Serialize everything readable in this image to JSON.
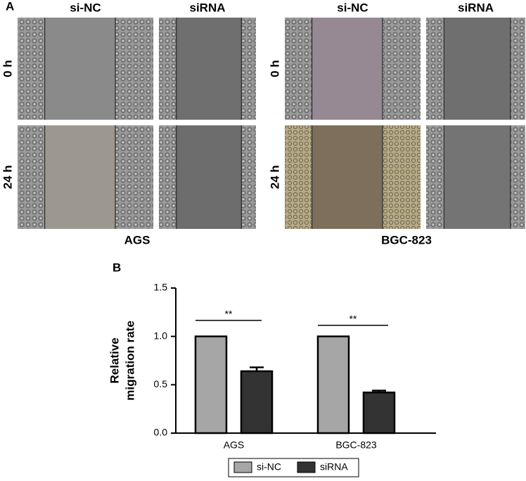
{
  "panel_a": {
    "label": "A",
    "groups": [
      {
        "name": "AGS",
        "columns": [
          "si-NC",
          "siRNA"
        ],
        "rows": [
          "0 h",
          "24 h"
        ]
      },
      {
        "name": "BGC-823",
        "columns": [
          "si-NC",
          "siRNA"
        ],
        "rows": [
          "0 h",
          "24 h"
        ]
      }
    ]
  },
  "chart_data": {
    "type": "bar",
    "panel_label": "B",
    "y_label": [
      "Relative",
      "migration rate"
    ],
    "categories": [
      "AGS",
      "BGC-823"
    ],
    "series": [
      {
        "name": "si-NC",
        "color": "#a6a6a6",
        "values": [
          1.0,
          1.0
        ]
      },
      {
        "name": "siRNA",
        "color": "#333333",
        "values": [
          0.64,
          0.42
        ],
        "errors": [
          0.04,
          0.02
        ]
      }
    ],
    "ylim": [
      0,
      1.5
    ],
    "yticks": [
      {
        "value": 0,
        "label": "0.0"
      },
      {
        "value": 0.5,
        "label": "0.5"
      },
      {
        "value": 1,
        "label": "1.0"
      },
      {
        "value": 1.5,
        "label": "1.5"
      }
    ],
    "annotations": [
      "**",
      "**"
    ]
  }
}
